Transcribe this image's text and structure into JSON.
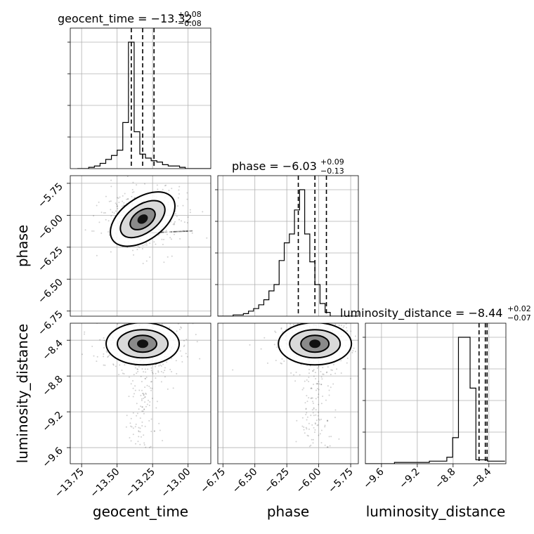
{
  "chart_data": {
    "type": "corner",
    "parameters": [
      "geocent_time",
      "phase",
      "luminosity_distance"
    ],
    "axis_labels": [
      "geocent_time",
      "phase",
      "luminosity_distance"
    ],
    "titles": [
      {
        "name": "geocent_time",
        "median": "−13.32",
        "plus": "+0.08",
        "minus": "−0.08"
      },
      {
        "name": "phase",
        "median": "−6.03",
        "plus": "+0.09",
        "minus": "−0.13"
      },
      {
        "name": "luminosity_distance",
        "median": "−8.44",
        "plus": "+0.02",
        "minus": "−0.07"
      }
    ],
    "ranges": [
      [
        -13.83,
        -12.84
      ],
      [
        -6.79,
        -5.69
      ],
      [
        -9.78,
        -8.21
      ]
    ],
    "ticks": [
      {
        "values": [
          -13.75,
          -13.5,
          -13.25,
          -13.0
        ],
        "labels": [
          "−13.75",
          "−13.50",
          "−13.25",
          "−13.00"
        ]
      },
      {
        "values": [
          -6.75,
          -6.5,
          -6.25,
          -6.0,
          -5.75
        ],
        "labels": [
          "−6.75",
          "−6.50",
          "−6.25",
          "−6.00",
          "−5.75"
        ]
      },
      {
        "values": [
          -9.6,
          -9.2,
          -8.8,
          -8.4
        ],
        "labels": [
          "−9.6",
          "−9.2",
          "−8.8",
          "−8.4"
        ]
      }
    ],
    "quantiles": [
      [
        -13.4,
        -13.32,
        -13.24
      ],
      [
        -6.16,
        -6.03,
        -5.94
      ],
      [
        -8.51,
        -8.44,
        -8.42
      ]
    ],
    "histograms": [
      {
        "edges_start": -13.78,
        "bin_width": 0.04,
        "counts": [
          0,
          0,
          1,
          2,
          4,
          7,
          10,
          14,
          35,
          96,
          28,
          11,
          8,
          6,
          5,
          3,
          2,
          2,
          1,
          0,
          0,
          0,
          0,
          0
        ]
      },
      {
        "edges_start": -6.79,
        "bin_width": 0.04,
        "counts": [
          0,
          0,
          0,
          1,
          1,
          2,
          4,
          6,
          9,
          13,
          20,
          25,
          44,
          58,
          65,
          84,
          100,
          65,
          43,
          25,
          10,
          3,
          0,
          0,
          0,
          0,
          0,
          0
        ]
      },
      {
        "edges_start": -9.78,
        "bin_width": 0.065,
        "counts": [
          0,
          0,
          0,
          0,
          0,
          1,
          1,
          1,
          1,
          1,
          1,
          2,
          2,
          2,
          5,
          20,
          97,
          97,
          58,
          3,
          3,
          2,
          2,
          2
        ]
      }
    ],
    "contour_levels": [
      "0.118",
      "0.393",
      "0.675",
      "0.865"
    ],
    "scatter_note": "",
    "grid": true
  }
}
